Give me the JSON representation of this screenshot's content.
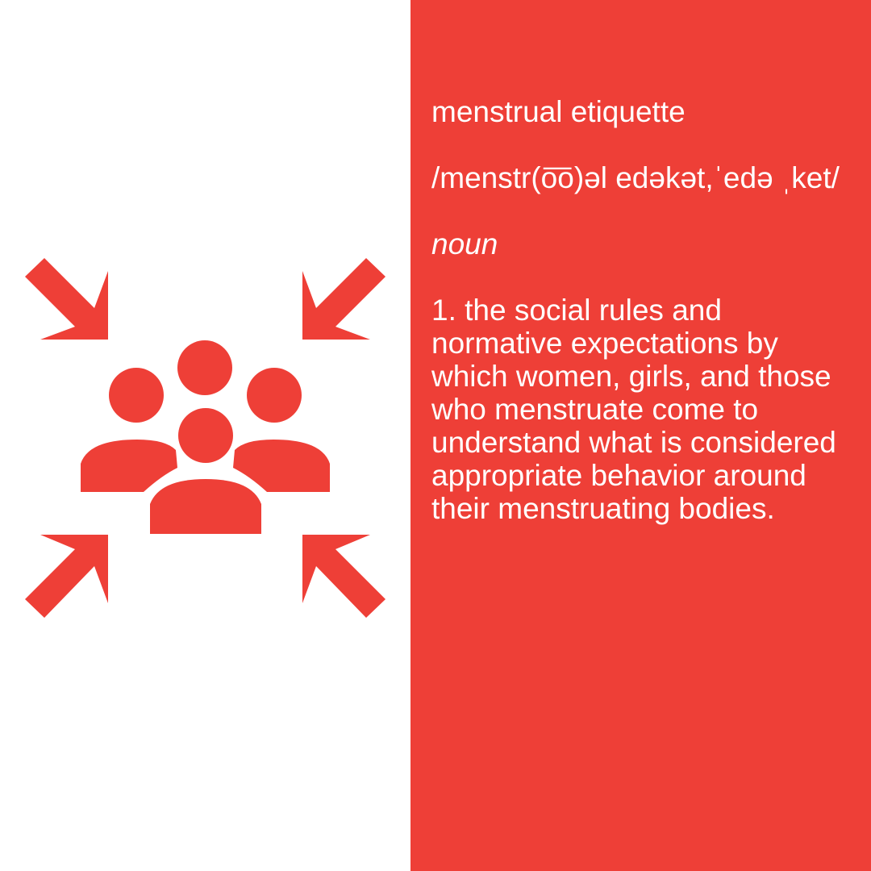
{
  "colors": {
    "accent": "#ee3f37",
    "background": "#ffffff",
    "text_on_accent": "#ffffff"
  },
  "icon": {
    "name": "gathering-point-icon"
  },
  "definition": {
    "term": "menstrual etiquette",
    "pronunciation": "/menstr(o͞o)əl edəkət,ˈedə ˌket/",
    "part_of_speech": "noun",
    "sense": "1. the social rules and normative expectations by which women, girls, and those who menstruate come to understand what is considered appropriate behavior around their menstruating bodies."
  }
}
